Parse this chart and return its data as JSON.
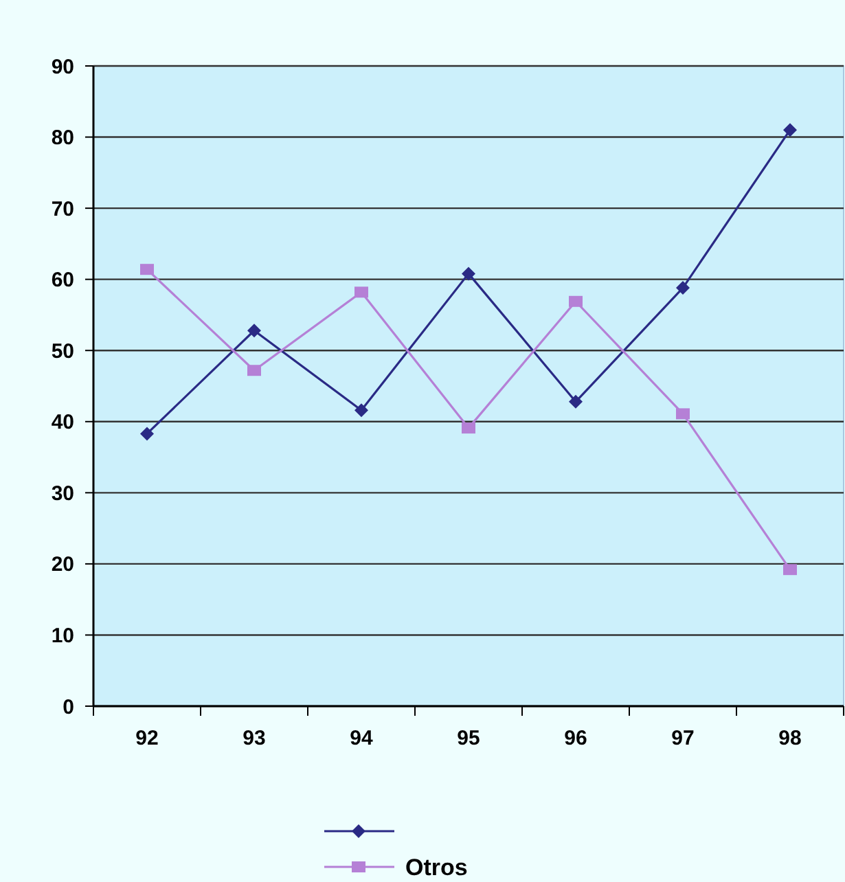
{
  "chart_data": {
    "type": "line",
    "categories": [
      "92",
      "93",
      "94",
      "95",
      "96",
      "97",
      "98"
    ],
    "series": [
      {
        "color": "#2a2a85",
        "marker": "diamond",
        "values": [
          38.3,
          52.8,
          41.6,
          60.8,
          42.8,
          58.8,
          81
        ]
      },
      {
        "name": "Otros",
        "color": "#b580d6",
        "marker": "square",
        "values": [
          61.4,
          47.2,
          58.2,
          39.1,
          56.9,
          41.1,
          19.2
        ]
      }
    ],
    "ylim": [
      0,
      90
    ],
    "yticks": [
      0,
      10,
      20,
      30,
      40,
      50,
      60,
      70,
      80,
      90
    ],
    "grid": "y",
    "legend": "bottom"
  }
}
